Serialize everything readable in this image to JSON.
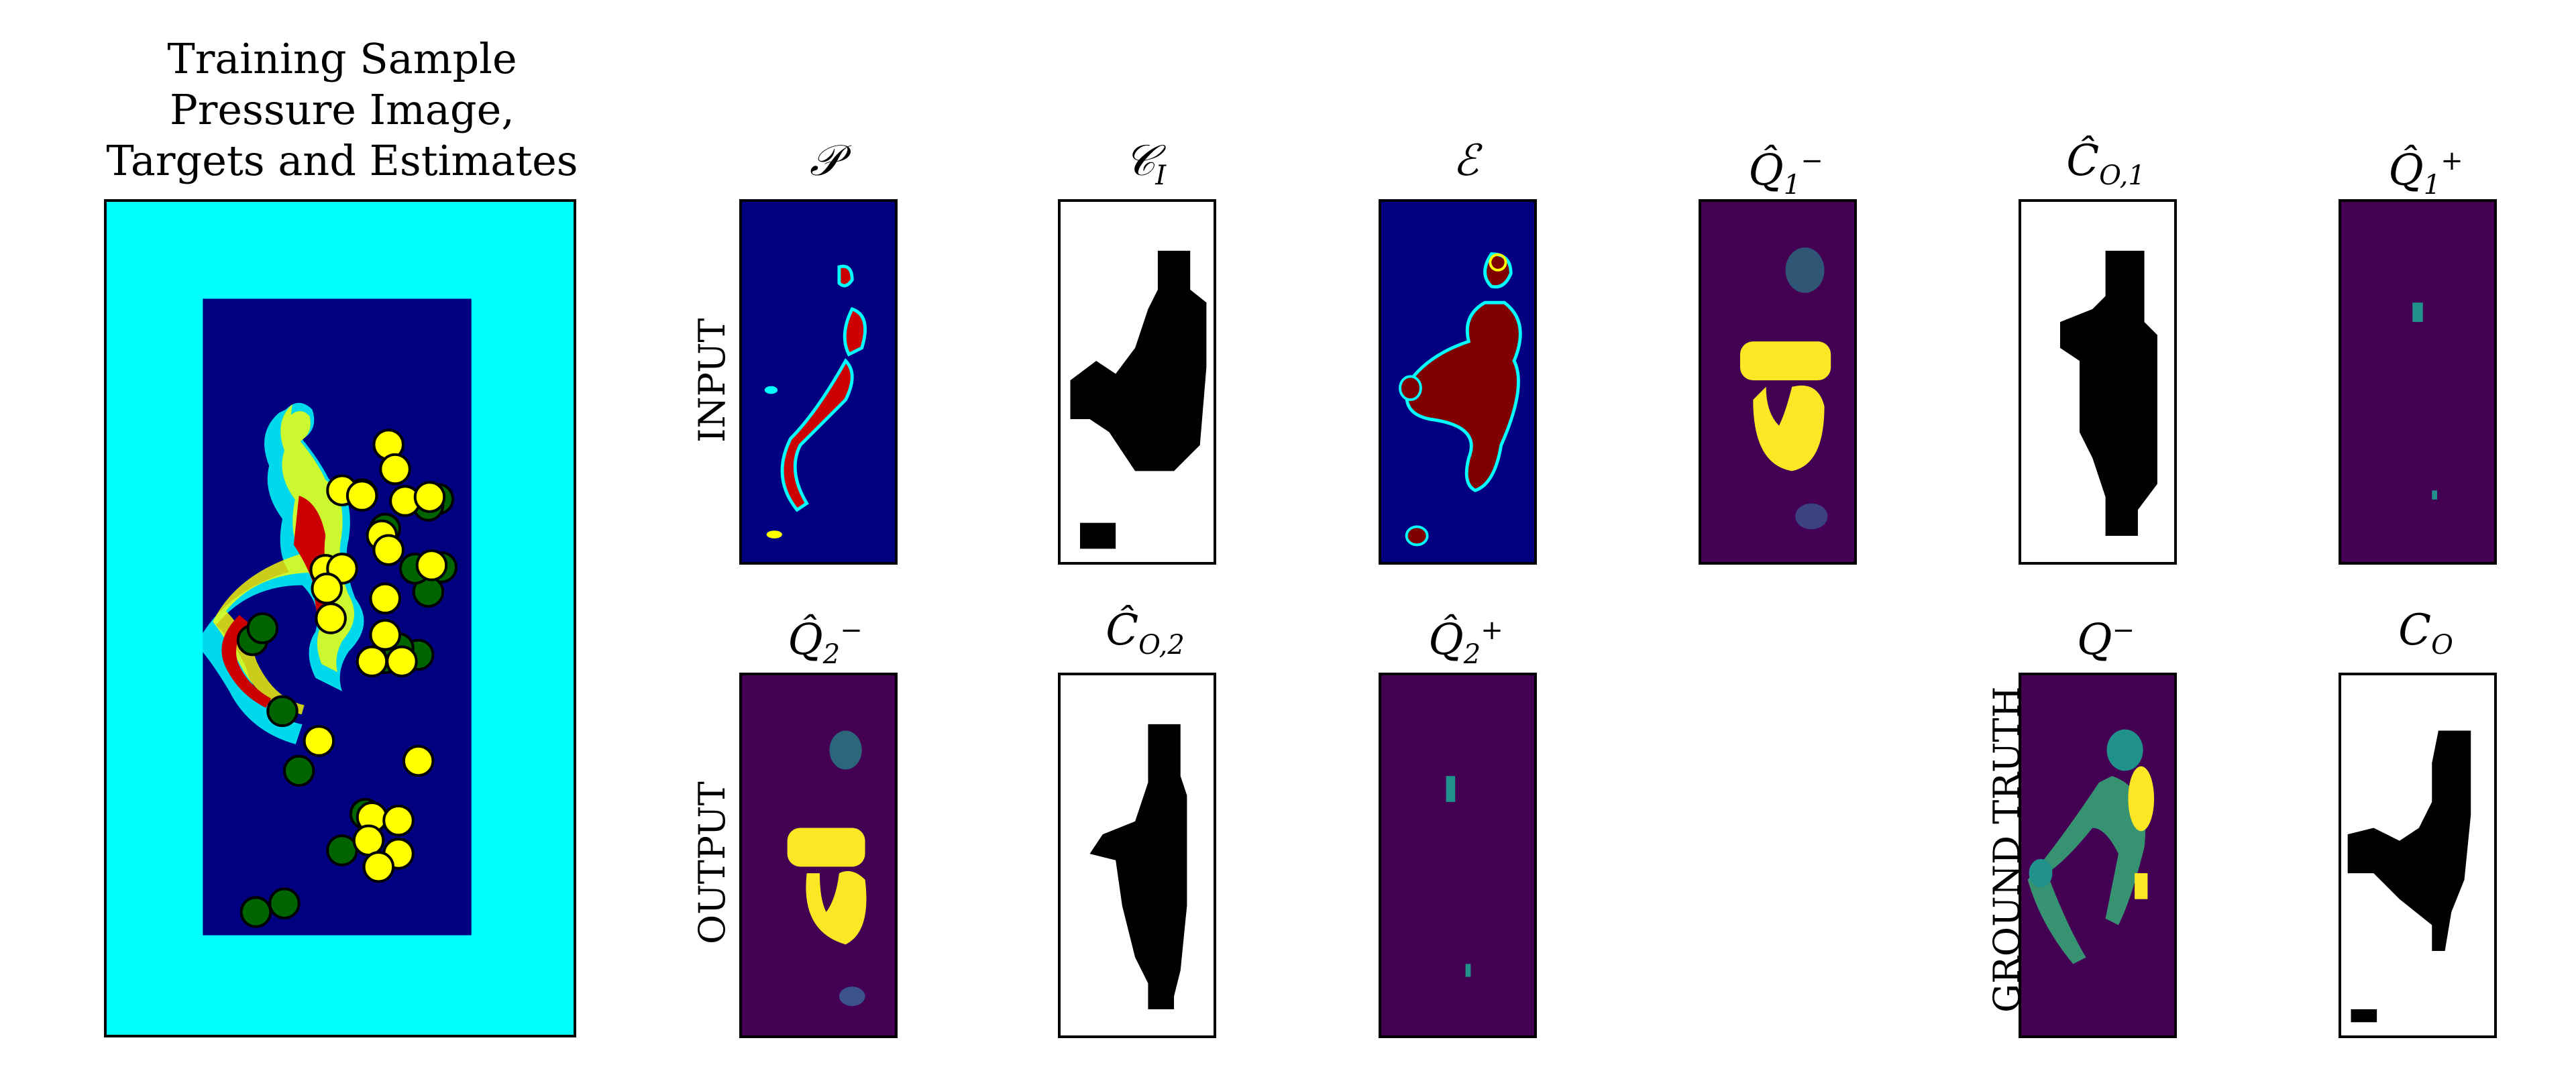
{
  "figure": {
    "title_lines": [
      "Training Sample",
      "Pressure Image,",
      "Targets and Estimates"
    ],
    "row_labels": {
      "input": "INPUT",
      "output": "OUTPUT",
      "ground_truth": "GROUND TRUTH"
    }
  },
  "panels": {
    "p": {
      "symbol": "𝒫"
    },
    "ci": {
      "symbol": "𝒞",
      "sub": "I"
    },
    "e": {
      "symbol": "ℰ"
    },
    "q1m": {
      "symbol": "Q̂",
      "sub": "1",
      "sup": "−"
    },
    "co1": {
      "symbol": "Ĉ",
      "sub": "O,1"
    },
    "q1p": {
      "symbol": "Q̂",
      "sub": "1",
      "sup": "+"
    },
    "q2m": {
      "symbol": "Q̂",
      "sub": "2",
      "sup": "−"
    },
    "co2": {
      "symbol": "Ĉ",
      "sub": "O,2"
    },
    "q2p": {
      "symbol": "Q̂",
      "sub": "2",
      "sup": "+"
    },
    "qm": {
      "symbol": "Q",
      "sup": "−"
    },
    "co": {
      "symbol": "C",
      "sub": "O"
    }
  },
  "colors": {
    "cyan_bg": "#00ffff",
    "jet_low": "#000080",
    "jet_high": "#800000",
    "viridis_low": "#440154",
    "viridis_high": "#fde725",
    "marker_yellow": "#ffff00",
    "marker_green": "#006400"
  }
}
